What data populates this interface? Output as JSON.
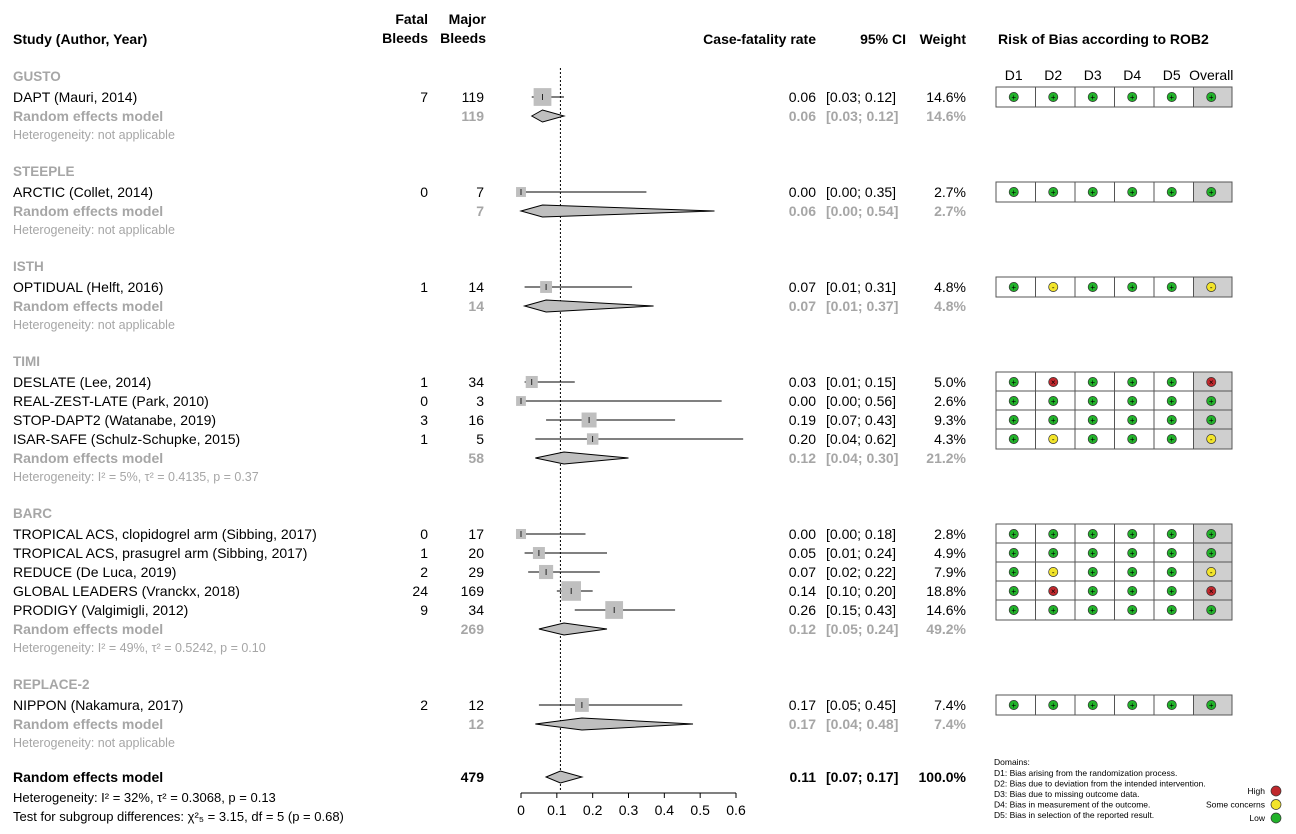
{
  "headers": {
    "study": "Study (Author, Year)",
    "fatal_1": "Fatal",
    "fatal_2": "Bleeds",
    "major_1": "Major",
    "major_2": "Bleeds",
    "cfr": "Case-fatality rate",
    "ci": "95% CI",
    "weight": "Weight",
    "rob": "Risk of Bias according to ROB2"
  },
  "rob_columns": [
    "D1",
    "D2",
    "D3",
    "D4",
    "D5",
    "Overall"
  ],
  "colors": {
    "low": "#22b22a",
    "some": "#f2e42a",
    "high": "#c0282d",
    "box": "#bfbfbf",
    "gray_text": "#a6a6a6"
  },
  "chart_data": {
    "type": "forest",
    "xaxis_ticks": [
      "0",
      "0.1",
      "0.2",
      "0.3",
      "0.4",
      "0.5",
      "0.6"
    ],
    "xlim": [
      0,
      0.6
    ],
    "reference_line": 0.11,
    "groups": [
      {
        "name": "GUSTO",
        "studies": [
          {
            "label": "DAPT (Mauri, 2014)",
            "fatal": "7",
            "major": "119",
            "est": 0.06,
            "lo": 0.03,
            "hi": 0.12,
            "rate": "0.06",
            "ci": "[0.03; 0.12]",
            "weight": "14.6%",
            "w": 14.6,
            "rob": [
              "low",
              "low",
              "low",
              "low",
              "low",
              "low"
            ]
          }
        ],
        "re": {
          "label": "Random effects model",
          "major": "119",
          "est": 0.06,
          "lo": 0.03,
          "hi": 0.12,
          "rate": "0.06",
          "ci": "[0.03; 0.12]",
          "weight": "14.6%"
        },
        "het": "Heterogeneity: not applicable"
      },
      {
        "name": "STEEPLE",
        "studies": [
          {
            "label": "ARCTIC (Collet, 2014)",
            "fatal": "0",
            "major": "7",
            "est": 0.0,
            "lo": 0.0,
            "hi": 0.35,
            "rate": "0.00",
            "ci": "[0.00; 0.35]",
            "weight": "2.7%",
            "w": 2.7,
            "rob": [
              "low",
              "low",
              "low",
              "low",
              "low",
              "low"
            ]
          }
        ],
        "re": {
          "label": "Random effects model",
          "major": "7",
          "est": 0.06,
          "lo": 0.0,
          "hi": 0.54,
          "rate": "0.06",
          "ci": "[0.00; 0.54]",
          "weight": "2.7%"
        },
        "het": "Heterogeneity: not applicable"
      },
      {
        "name": "ISTH",
        "studies": [
          {
            "label": "OPTIDUAL (Helft, 2016)",
            "fatal": "1",
            "major": "14",
            "est": 0.07,
            "lo": 0.01,
            "hi": 0.31,
            "rate": "0.07",
            "ci": "[0.01; 0.31]",
            "weight": "4.8%",
            "w": 4.8,
            "rob": [
              "low",
              "some",
              "low",
              "low",
              "low",
              "some"
            ]
          }
        ],
        "re": {
          "label": "Random effects model",
          "major": "14",
          "est": 0.07,
          "lo": 0.01,
          "hi": 0.37,
          "rate": "0.07",
          "ci": "[0.01; 0.37]",
          "weight": "4.8%"
        },
        "het": "Heterogeneity: not applicable"
      },
      {
        "name": "TIMI",
        "studies": [
          {
            "label": "DESLATE (Lee, 2014)",
            "fatal": "1",
            "major": "34",
            "est": 0.03,
            "lo": 0.01,
            "hi": 0.15,
            "rate": "0.03",
            "ci": "[0.01; 0.15]",
            "weight": "5.0%",
            "w": 5.0,
            "rob": [
              "low",
              "high",
              "low",
              "low",
              "low",
              "high"
            ]
          },
          {
            "label": "REAL-ZEST-LATE (Park, 2010)",
            "fatal": "0",
            "major": "3",
            "est": 0.0,
            "lo": 0.0,
            "hi": 0.56,
            "rate": "0.00",
            "ci": "[0.00; 0.56]",
            "weight": "2.6%",
            "w": 2.6,
            "rob": [
              "low",
              "low",
              "low",
              "low",
              "low",
              "low"
            ]
          },
          {
            "label": "STOP-DAPT2 (Watanabe, 2019)",
            "fatal": "3",
            "major": "16",
            "est": 0.19,
            "lo": 0.07,
            "hi": 0.43,
            "rate": "0.19",
            "ci": "[0.07; 0.43]",
            "weight": "9.3%",
            "w": 9.3,
            "rob": [
              "low",
              "low",
              "low",
              "low",
              "low",
              "low"
            ]
          },
          {
            "label": "ISAR-SAFE (Schulz-Schupke, 2015)",
            "fatal": "1",
            "major": "5",
            "est": 0.2,
            "lo": 0.04,
            "hi": 0.62,
            "rate": "0.20",
            "ci": "[0.04; 0.62]",
            "weight": "4.3%",
            "w": 4.3,
            "rob": [
              "low",
              "some",
              "low",
              "low",
              "low",
              "some"
            ]
          }
        ],
        "re": {
          "label": "Random effects model",
          "major": "58",
          "est": 0.12,
          "lo": 0.04,
          "hi": 0.3,
          "rate": "0.12",
          "ci": "[0.04; 0.30]",
          "weight": "21.2%"
        },
        "het": "Heterogeneity: I² = 5%, τ² = 0.4135, p = 0.37"
      },
      {
        "name": "BARC",
        "studies": [
          {
            "label": "TROPICAL ACS, clopidogrel arm (Sibbing, 2017)",
            "fatal": "0",
            "major": "17",
            "est": 0.0,
            "lo": 0.0,
            "hi": 0.18,
            "rate": "0.00",
            "ci": "[0.00; 0.18]",
            "weight": "2.8%",
            "w": 2.8,
            "rob": [
              "low",
              "low",
              "low",
              "low",
              "low",
              "low"
            ]
          },
          {
            "label": "TROPICAL ACS, prasugrel arm (Sibbing, 2017)",
            "fatal": "1",
            "major": "20",
            "est": 0.05,
            "lo": 0.01,
            "hi": 0.24,
            "rate": "0.05",
            "ci": "[0.01; 0.24]",
            "weight": "4.9%",
            "w": 4.9,
            "rob": [
              "low",
              "low",
              "low",
              "low",
              "low",
              "low"
            ]
          },
          {
            "label": "REDUCE (De Luca, 2019)",
            "fatal": "2",
            "major": "29",
            "est": 0.07,
            "lo": 0.02,
            "hi": 0.22,
            "rate": "0.07",
            "ci": "[0.02; 0.22]",
            "weight": "7.9%",
            "w": 7.9,
            "rob": [
              "low",
              "some",
              "low",
              "low",
              "low",
              "some"
            ]
          },
          {
            "label": "GLOBAL LEADERS (Vranckx, 2018)",
            "fatal": "24",
            "major": "169",
            "est": 0.14,
            "lo": 0.1,
            "hi": 0.2,
            "rate": "0.14",
            "ci": "[0.10; 0.20]",
            "weight": "18.8%",
            "w": 18.8,
            "rob": [
              "low",
              "high",
              "low",
              "low",
              "low",
              "high"
            ]
          },
          {
            "label": "PRODIGY (Valgimigli, 2012)",
            "fatal": "9",
            "major": "34",
            "est": 0.26,
            "lo": 0.15,
            "hi": 0.43,
            "rate": "0.26",
            "ci": "[0.15; 0.43]",
            "weight": "14.6%",
            "w": 14.6,
            "rob": [
              "low",
              "low",
              "low",
              "low",
              "low",
              "low"
            ]
          }
        ],
        "re": {
          "label": "Random effects model",
          "major": "269",
          "est": 0.12,
          "lo": 0.05,
          "hi": 0.24,
          "rate": "0.12",
          "ci": "[0.05; 0.24]",
          "weight": "49.2%"
        },
        "het": "Heterogeneity: I² = 49%, τ² = 0.5242, p = 0.10"
      },
      {
        "name": "REPLACE-2",
        "studies": [
          {
            "label": "NIPPON (Nakamura, 2017)",
            "fatal": "2",
            "major": "12",
            "est": 0.17,
            "lo": 0.05,
            "hi": 0.45,
            "rate": "0.17",
            "ci": "[0.05; 0.45]",
            "weight": "7.4%",
            "w": 7.4,
            "rob": [
              "low",
              "low",
              "low",
              "low",
              "low",
              "low"
            ]
          }
        ],
        "re": {
          "label": "Random effects model",
          "major": "12",
          "est": 0.17,
          "lo": 0.04,
          "hi": 0.48,
          "rate": "0.17",
          "ci": "[0.04; 0.48]",
          "weight": "7.4%"
        },
        "het": "Heterogeneity: not applicable"
      }
    ],
    "overall": {
      "label": "Random effects model",
      "major": "479",
      "est": 0.11,
      "lo": 0.07,
      "hi": 0.17,
      "rate": "0.11",
      "ci": "[0.07; 0.17]",
      "weight": "100.0%",
      "het": "Heterogeneity: I² = 32%, τ² = 0.3068, p = 0.13",
      "subgroup_test": "Test for subgroup differences: χ²₅ = 3.15, df = 5 (p = 0.68)"
    }
  },
  "rob_legend": {
    "domains_title": "Domains:",
    "domains": [
      "D1: Bias arising from the randomization process.",
      "D2: Bias due to deviation from the intended intervention.",
      "D3: Bias due to missing outcome data.",
      "D4: Bias in measurement of the outcome.",
      "D5: Bias in selection of the reported result."
    ],
    "judgements": [
      {
        "label": "High",
        "level": "high"
      },
      {
        "label": "Some concerns",
        "level": "some"
      },
      {
        "label": "Low",
        "level": "low"
      }
    ]
  }
}
